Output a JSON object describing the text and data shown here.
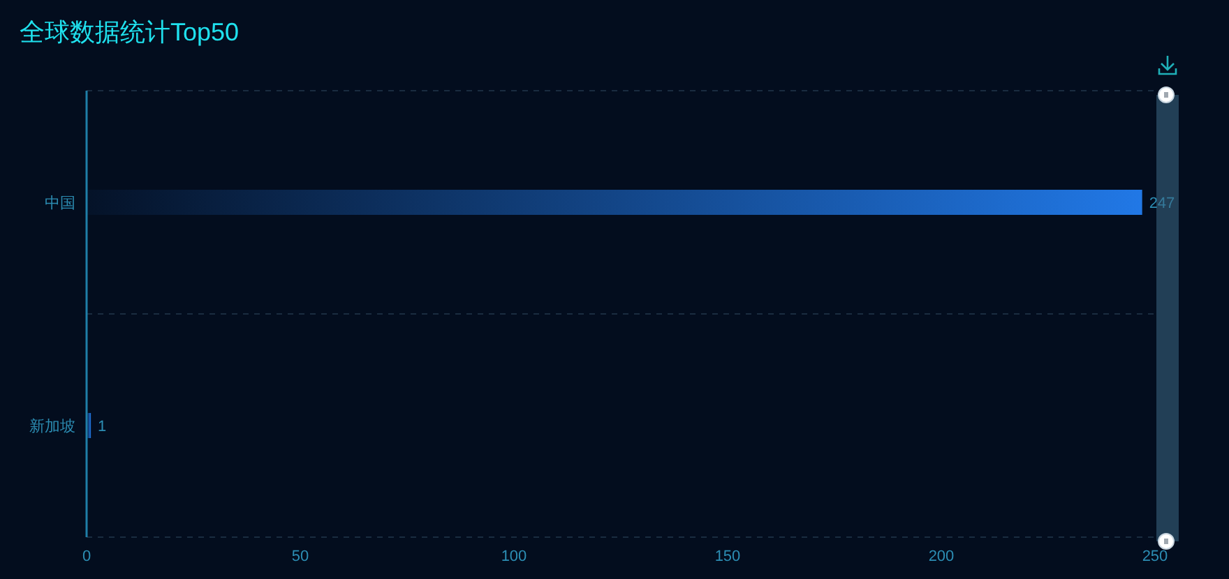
{
  "chart_data": {
    "type": "bar",
    "orientation": "horizontal",
    "title": "全球数据统计Top50",
    "categories": [
      "中国",
      "新加坡"
    ],
    "values": [
      247,
      1
    ],
    "color": "#2178e6",
    "xlim": [
      0,
      250
    ],
    "xticks": [
      0,
      50,
      100,
      150,
      200,
      250
    ],
    "grid": "y",
    "data_labels": true
  }
}
